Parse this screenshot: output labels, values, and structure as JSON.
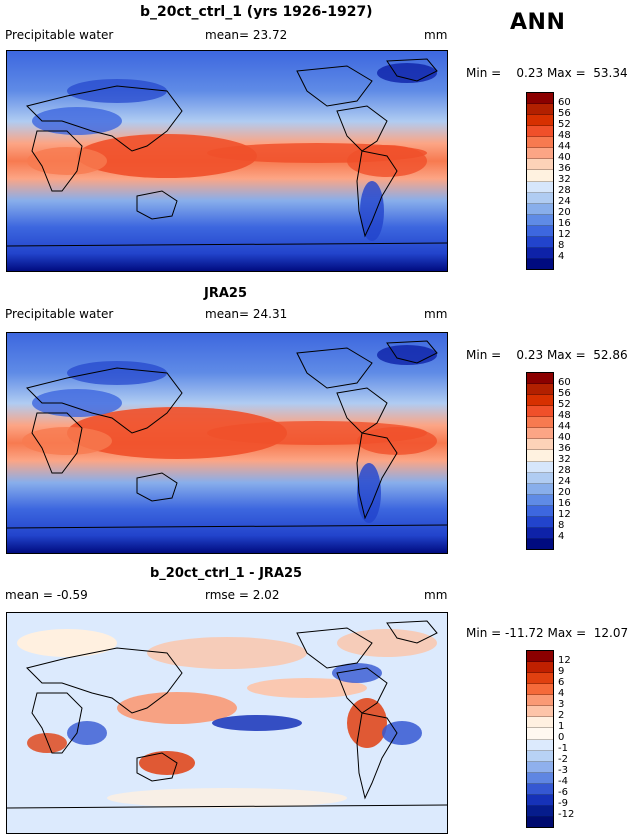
{
  "season": "ANN",
  "panels": [
    {
      "title": "b_20ct_ctrl_1 (yrs 1926-1927)",
      "left_label": "Precipitable water",
      "mid_label": "mean=  23.72",
      "unit": "mm",
      "minmax": "Min =    0.23 Max =  53.34",
      "colorbar_ticks": [
        "60",
        "56",
        "52",
        "48",
        "44",
        "40",
        "36",
        "32",
        "28",
        "24",
        "20",
        "16",
        "12",
        "8",
        "4"
      ]
    },
    {
      "title": "JRA25",
      "left_label": "Precipitable water",
      "mid_label": "mean=  24.31",
      "unit": "mm",
      "minmax": "Min =    0.23 Max =  52.86",
      "colorbar_ticks": [
        "60",
        "56",
        "52",
        "48",
        "44",
        "40",
        "36",
        "32",
        "28",
        "24",
        "20",
        "16",
        "12",
        "8",
        "4"
      ]
    },
    {
      "title": "b_20ct_ctrl_1 - JRA25",
      "left_label": "mean =  -0.59",
      "mid_label": "rmse =   2.02",
      "unit": "mm",
      "minmax": "Min = -11.72 Max =  12.07",
      "colorbar_ticks": [
        "12",
        "9",
        "6",
        "4",
        "3",
        "2",
        "1",
        "0",
        "-1",
        "-2",
        "-3",
        "-4",
        "-6",
        "-9",
        "-12"
      ]
    }
  ],
  "colors": {
    "abs_scale": [
      "#8b0000",
      "#b22000",
      "#d73000",
      "#f0502a",
      "#f77a50",
      "#fca585",
      "#fdd2b8",
      "#fff2e0",
      "#d6e6fb",
      "#b0ccf2",
      "#88aeeb",
      "#5f8be6",
      "#3d67df",
      "#2244cc",
      "#0e22a8",
      "#000b80"
    ],
    "diff_scale": [
      "#8b0000",
      "#c02000",
      "#e04010",
      "#f56a3a",
      "#fa9a75",
      "#fdc4a8",
      "#fff0e0",
      "#fff8f0",
      "#dceafd",
      "#b8d2f5",
      "#8fb0ed",
      "#5f86e2",
      "#3558d2",
      "#1632b8",
      "#061c8c",
      "#000b70"
    ]
  }
}
